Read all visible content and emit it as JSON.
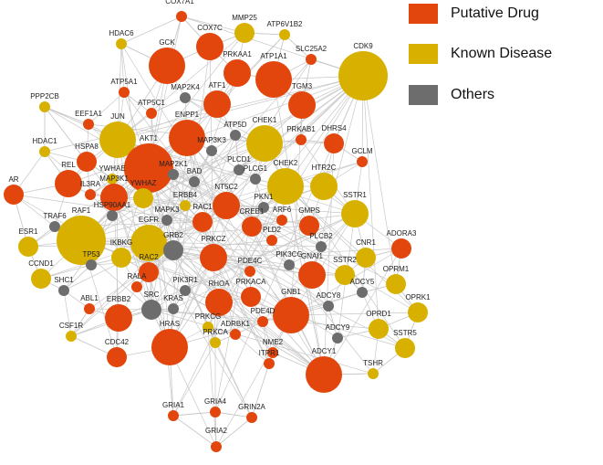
{
  "colors": {
    "putative": "#e2460c",
    "known": "#d8b100",
    "others": "#6d6d6d",
    "edge": "#c8c8c8"
  },
  "legend": [
    {
      "key": "putative",
      "label": "Putative Drug"
    },
    {
      "key": "known",
      "label": "Known Disease"
    },
    {
      "key": "others",
      "label": "Others"
    }
  ],
  "nodes": [
    {
      "id": "COX7A1",
      "type": "putative",
      "size": "xs"
    },
    {
      "id": "HDAC6",
      "type": "known",
      "size": "xs"
    },
    {
      "id": "MMP25",
      "type": "known",
      "size": "s"
    },
    {
      "id": "ATP6V1B2",
      "type": "known",
      "size": "xs"
    },
    {
      "id": "GCK",
      "type": "putative",
      "size": "l"
    },
    {
      "id": "COX7C",
      "type": "putative",
      "size": "m"
    },
    {
      "id": "PRKAA1",
      "type": "putative",
      "size": "m"
    },
    {
      "id": "ATP1A1",
      "type": "putative",
      "size": "l"
    },
    {
      "id": "SLC25A2",
      "type": "putative",
      "size": "xs"
    },
    {
      "id": "CDK9",
      "type": "known",
      "size": "xl"
    },
    {
      "id": "ATP5A1",
      "type": "putative",
      "size": "xs"
    },
    {
      "id": "MAP2K4",
      "type": "others",
      "size": "xs"
    },
    {
      "id": "ATF1",
      "type": "putative",
      "size": "m"
    },
    {
      "id": "TGM3",
      "type": "putative",
      "size": "m"
    },
    {
      "id": "PPP2CB",
      "type": "known",
      "size": "xs"
    },
    {
      "id": "ATP5C1",
      "type": "putative",
      "size": "xs"
    },
    {
      "id": "EEF1A1",
      "type": "putative",
      "size": "xs"
    },
    {
      "id": "JUN",
      "type": "known",
      "size": "l"
    },
    {
      "id": "ENPP1",
      "type": "putative",
      "size": "l"
    },
    {
      "id": "ATP5D",
      "type": "others",
      "size": "xs"
    },
    {
      "id": "CHEK1",
      "type": "known",
      "size": "l"
    },
    {
      "id": "PRKAB1",
      "type": "putative",
      "size": "xs"
    },
    {
      "id": "DHRS4",
      "type": "putative",
      "size": "s"
    },
    {
      "id": "HDAC1",
      "type": "known",
      "size": "xs"
    },
    {
      "id": "HSPA8",
      "type": "putative",
      "size": "s"
    },
    {
      "id": "AKT1",
      "type": "putative",
      "size": "xl"
    },
    {
      "id": "MAP3K3",
      "type": "others",
      "size": "xs"
    },
    {
      "id": "GCLM",
      "type": "putative",
      "size": "xs"
    },
    {
      "id": "YWHAE",
      "type": "known",
      "size": "xs"
    },
    {
      "id": "MAP2K1",
      "type": "others",
      "size": "xs"
    },
    {
      "id": "PLCD1",
      "type": "others",
      "size": "xs"
    },
    {
      "id": "REL",
      "type": "putative",
      "size": "m"
    },
    {
      "id": "BAD",
      "type": "others",
      "size": "xs"
    },
    {
      "id": "PLCG1",
      "type": "others",
      "size": "xs"
    },
    {
      "id": "CHEK2",
      "type": "known",
      "size": "l"
    },
    {
      "id": "HTR2C",
      "type": "known",
      "size": "m"
    },
    {
      "id": "AR",
      "type": "putative",
      "size": "s"
    },
    {
      "id": "MAP3K1",
      "type": "putative",
      "size": "m"
    },
    {
      "id": "IL3RA",
      "type": "putative",
      "size": "xs"
    },
    {
      "id": "YWHAZ",
      "type": "known",
      "size": "s"
    },
    {
      "id": "ERBB4",
      "type": "known",
      "size": "xs"
    },
    {
      "id": "PKN1",
      "type": "others",
      "size": "xs"
    },
    {
      "id": "SSTR1",
      "type": "known",
      "size": "m"
    },
    {
      "id": "TRAF6",
      "type": "others",
      "size": "xs"
    },
    {
      "id": "HSP90AA1",
      "type": "others",
      "size": "xs"
    },
    {
      "id": "NT5C2",
      "type": "putative",
      "size": "m"
    },
    {
      "id": "ARF6",
      "type": "putative",
      "size": "xs"
    },
    {
      "id": "GMPS",
      "type": "putative",
      "size": "s"
    },
    {
      "id": "RAF1",
      "type": "known",
      "size": "xl"
    },
    {
      "id": "MAPK3",
      "type": "others",
      "size": "xs"
    },
    {
      "id": "RAC1",
      "type": "putative",
      "size": "s"
    },
    {
      "id": "CREB1",
      "type": "putative",
      "size": "s"
    },
    {
      "id": "ESR1",
      "type": "known",
      "size": "s"
    },
    {
      "id": "EGFR",
      "type": "known",
      "size": "l"
    },
    {
      "id": "PLD2",
      "type": "putative",
      "size": "xs"
    },
    {
      "id": "ADORA3",
      "type": "putative",
      "size": "s"
    },
    {
      "id": "GRB2",
      "type": "others",
      "size": "s"
    },
    {
      "id": "PLCB2",
      "type": "others",
      "size": "xs"
    },
    {
      "id": "TP53",
      "type": "others",
      "size": "xs"
    },
    {
      "id": "CCND1",
      "type": "known",
      "size": "s"
    },
    {
      "id": "IKBKG",
      "type": "known",
      "size": "s"
    },
    {
      "id": "PRKCZ",
      "type": "putative",
      "size": "m"
    },
    {
      "id": "CNR1",
      "type": "known",
      "size": "s"
    },
    {
      "id": "RAC2",
      "type": "putative",
      "size": "s"
    },
    {
      "id": "PDE4C",
      "type": "putative",
      "size": "xs"
    },
    {
      "id": "PIK3CG",
      "type": "others",
      "size": "xs"
    },
    {
      "id": "GNAI1",
      "type": "putative",
      "size": "m"
    },
    {
      "id": "SSTR2",
      "type": "known",
      "size": "s"
    },
    {
      "id": "OPRM1",
      "type": "known",
      "size": "s"
    },
    {
      "id": "SHC1",
      "type": "others",
      "size": "xs"
    },
    {
      "id": "RALA",
      "type": "putative",
      "size": "xs"
    },
    {
      "id": "PIK3R1",
      "type": "others",
      "size": "xs"
    },
    {
      "id": "ABL1",
      "type": "putative",
      "size": "xs"
    },
    {
      "id": "RHOA",
      "type": "putative",
      "size": "m"
    },
    {
      "id": "PRKACA",
      "type": "putative",
      "size": "s"
    },
    {
      "id": "GNB1",
      "type": "putative",
      "size": "l"
    },
    {
      "id": "ADCY5",
      "type": "others",
      "size": "xs"
    },
    {
      "id": "ADCY8",
      "type": "others",
      "size": "xs"
    },
    {
      "id": "OPRK1",
      "type": "known",
      "size": "s"
    },
    {
      "id": "ERBB2",
      "type": "putative",
      "size": "m"
    },
    {
      "id": "SRC",
      "type": "others",
      "size": "s"
    },
    {
      "id": "KRAS",
      "type": "others",
      "size": "xs"
    },
    {
      "id": "PRKCG",
      "type": "known",
      "size": "xs"
    },
    {
      "id": "PDE4D",
      "type": "putative",
      "size": "xs"
    },
    {
      "id": "CSF1R",
      "type": "known",
      "size": "xs"
    },
    {
      "id": "ADRBK1",
      "type": "putative",
      "size": "xs"
    },
    {
      "id": "OPRD1",
      "type": "known",
      "size": "s"
    },
    {
      "id": "ADCY9",
      "type": "others",
      "size": "xs"
    },
    {
      "id": "HRAS",
      "type": "putative",
      "size": "l"
    },
    {
      "id": "PRKCA",
      "type": "known",
      "size": "xs"
    },
    {
      "id": "CDC42",
      "type": "putative",
      "size": "s"
    },
    {
      "id": "SSTR5",
      "type": "known",
      "size": "s"
    },
    {
      "id": "NME2",
      "type": "putative",
      "size": "xs"
    },
    {
      "id": "ITPR1",
      "type": "putative",
      "size": "xs"
    },
    {
      "id": "ADCY1",
      "type": "putative",
      "size": "l"
    },
    {
      "id": "TSHR",
      "type": "known",
      "size": "xs"
    },
    {
      "id": "GRIA1",
      "type": "putative",
      "size": "xs"
    },
    {
      "id": "GRIA4",
      "type": "putative",
      "size": "xs"
    },
    {
      "id": "GRIN2A",
      "type": "putative",
      "size": "xs"
    },
    {
      "id": "GRIA2",
      "type": "putative",
      "size": "xs"
    }
  ]
}
